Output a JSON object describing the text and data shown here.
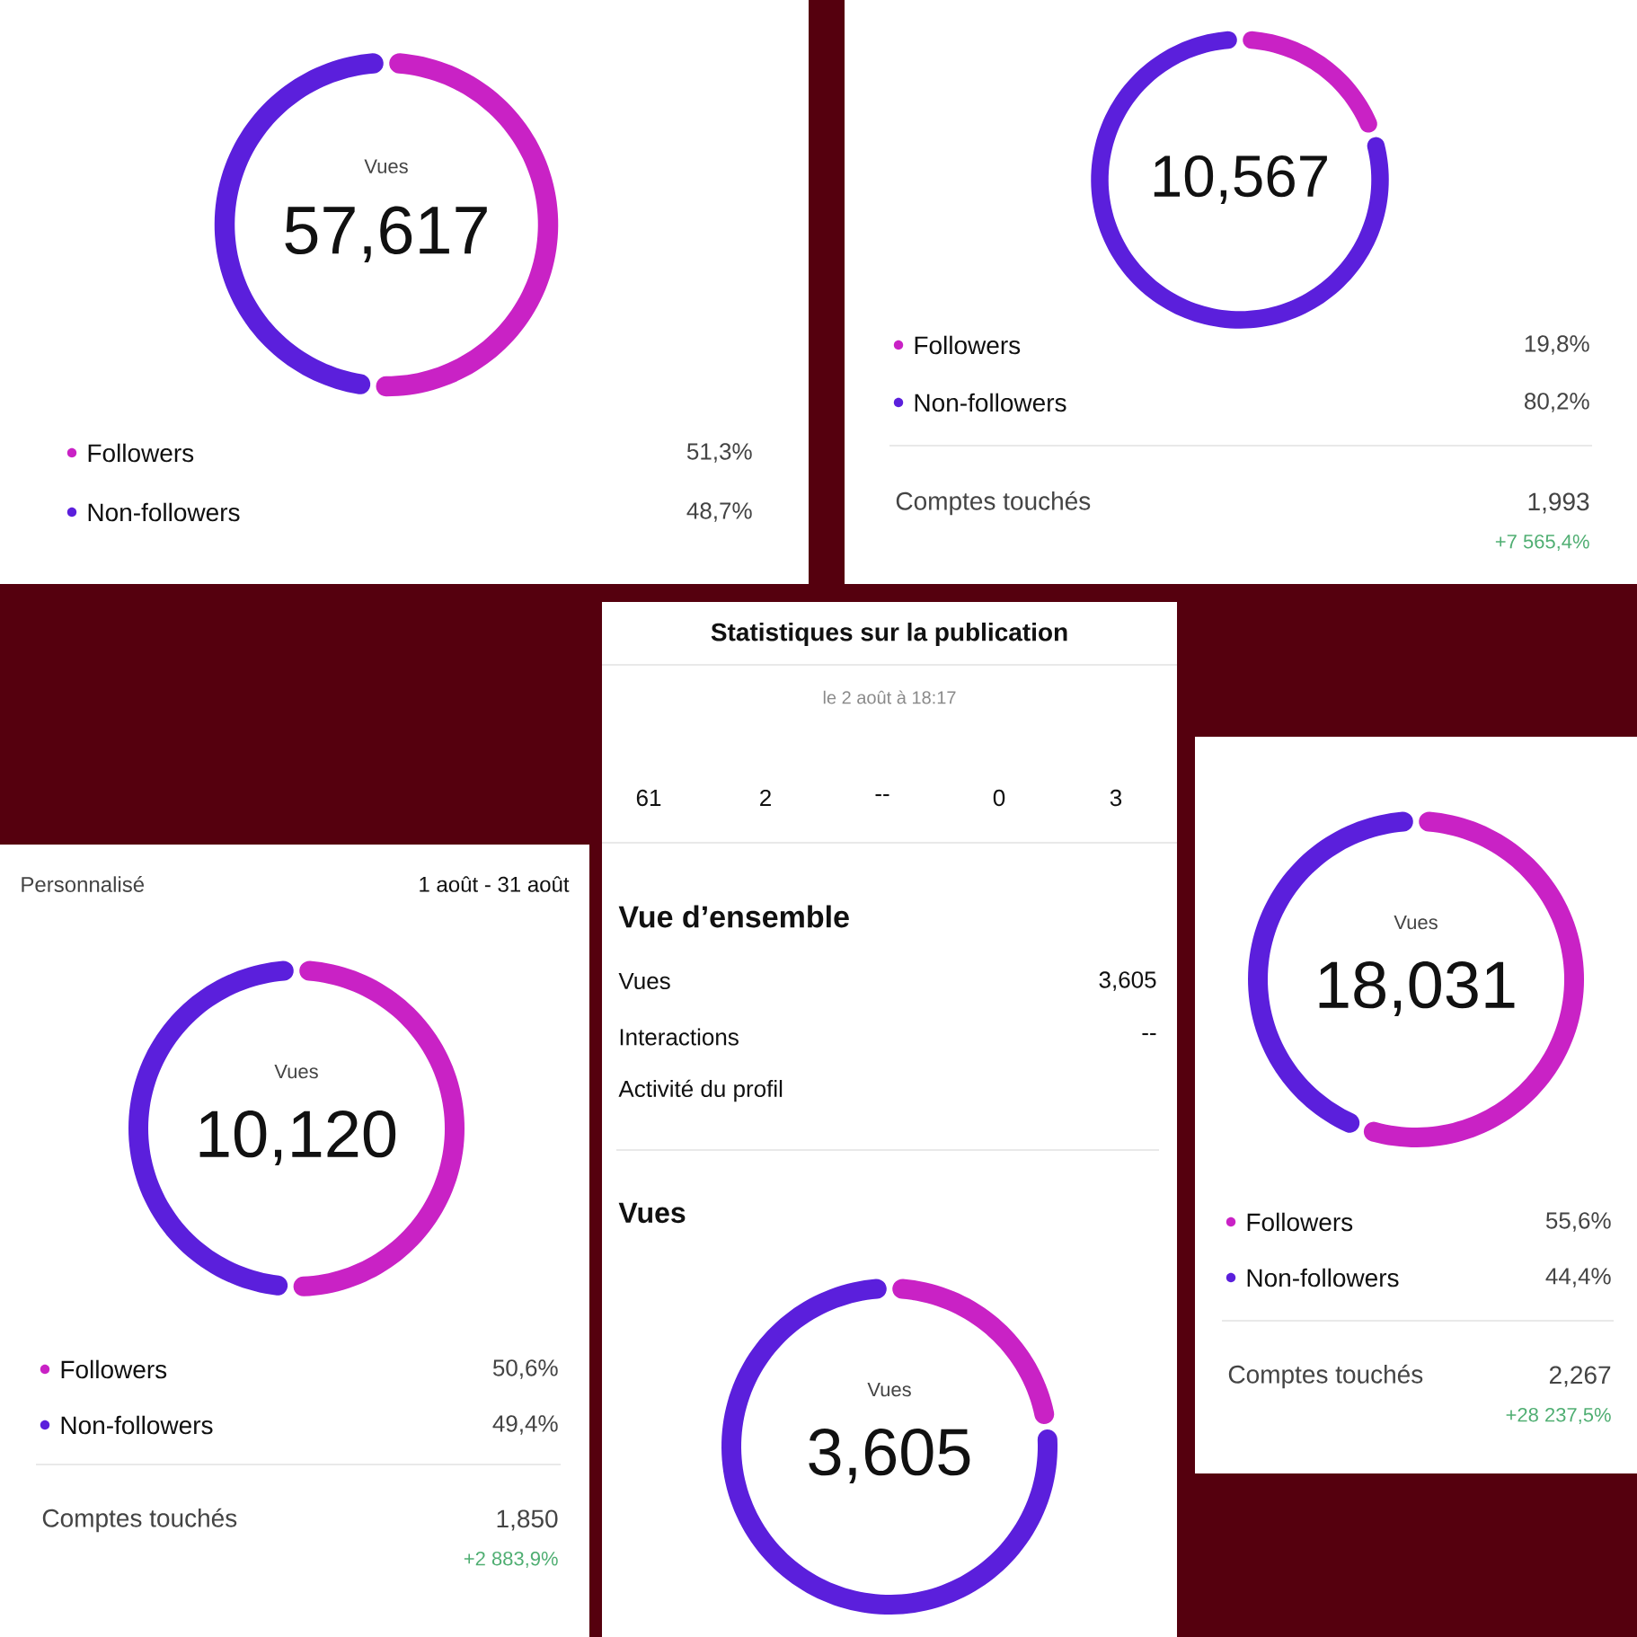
{
  "chart_data": [
    {
      "type": "donut",
      "title": "Vues",
      "categories": [
        "Followers",
        "Non-followers"
      ],
      "values": [
        51.3,
        48.7
      ],
      "colors": [
        "#c922c5",
        "#5b1fdc"
      ],
      "value_labels": [
        "51,3%",
        "48,7%"
      ],
      "legend": "bottom",
      "annotations": [
        "57,617"
      ]
    },
    {
      "type": "donut",
      "categories": [
        "Followers",
        "Non-followers"
      ],
      "values": [
        19.8,
        80.2
      ],
      "colors": [
        "#c922c5",
        "#5b1fdc"
      ],
      "value_labels": [
        "19,8%",
        "80,2%"
      ],
      "legend": "bottom",
      "annotations": [
        "10,567",
        "Comptes touchés",
        "1,993",
        "+7 565,4%"
      ]
    },
    {
      "type": "other",
      "title": "Statistiques sur la publication",
      "subtitle": "le 2 août à 18:17",
      "annotations": [
        "61",
        "2",
        "--",
        "0",
        "3",
        "Vue d’ensemble",
        "Vues",
        "3,605",
        "Interactions",
        "--",
        "Activité du profil",
        "Vues"
      ]
    },
    {
      "type": "donut",
      "title": "Vues",
      "categories": [
        "Followers",
        "Non-followers"
      ],
      "values": [
        50.6,
        49.4
      ],
      "colors": [
        "#c922c5",
        "#5b1fdc"
      ],
      "value_labels": [
        "50,6%",
        "49,4%"
      ],
      "legend": "bottom",
      "annotations": [
        "10,120",
        "Comptes touchés",
        "1,850",
        "+2 883,9%",
        "Personnalisé",
        "1 août - 31 août"
      ]
    },
    {
      "type": "donut",
      "title": "Vues",
      "categories": [
        null,
        null
      ],
      "values": [
        23,
        77
      ],
      "colors": [
        "#c922c5",
        "#5b1fdc"
      ],
      "annotations": [
        "3,605"
      ]
    },
    {
      "type": "donut",
      "title": "Vues",
      "categories": [
        "Followers",
        "Non-followers"
      ],
      "values": [
        55.6,
        44.4
      ],
      "colors": [
        "#c922c5",
        "#5b1fdc"
      ],
      "value_labels": [
        "55,6%",
        "44,4%"
      ],
      "legend": "bottom",
      "annotations": [
        "18,031",
        "Comptes touchés",
        "2,267",
        "+28 237,5%"
      ]
    }
  ]
}
